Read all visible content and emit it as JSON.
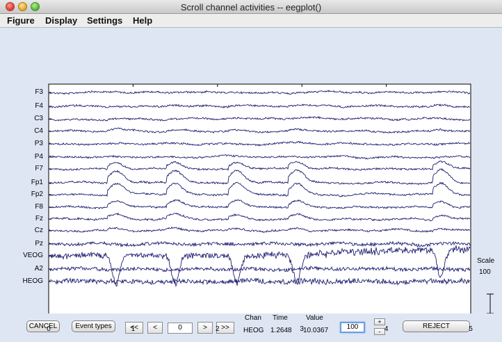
{
  "window": {
    "title": "Scroll channel activities -- eegplot()"
  },
  "menu": [
    {
      "label": "Figure"
    },
    {
      "label": "Display"
    },
    {
      "label": "Settings"
    },
    {
      "label": "Help"
    }
  ],
  "channels": [
    "F3",
    "F4",
    "C3",
    "C4",
    "P3",
    "P4",
    "F7",
    "Fp1",
    "Fp2",
    "F8",
    "Fz",
    "Cz",
    "Pz",
    "VEOG",
    "A2",
    "HEOG"
  ],
  "xaxis": {
    "ticks": [
      "0",
      "1",
      "2",
      "3",
      "4",
      "5"
    ],
    "min": 0,
    "max": 5
  },
  "scale": {
    "label": "Scale",
    "value": "100"
  },
  "trace_color": "#1c1c70",
  "controls": {
    "cancel": "CANCEL",
    "event_types": "Event types",
    "nav_first": "<<",
    "nav_prev": "<",
    "position": "0",
    "nav_next": ">",
    "nav_last": ">>",
    "chan_header": "Chan",
    "time_header": "Time",
    "value_header": "Value",
    "chan_value": "HEOG",
    "time_value": "1.2648",
    "value_value": "10.0367",
    "scale_field": "100",
    "plus": "+",
    "minus": "-",
    "reject": "REJECT"
  }
}
